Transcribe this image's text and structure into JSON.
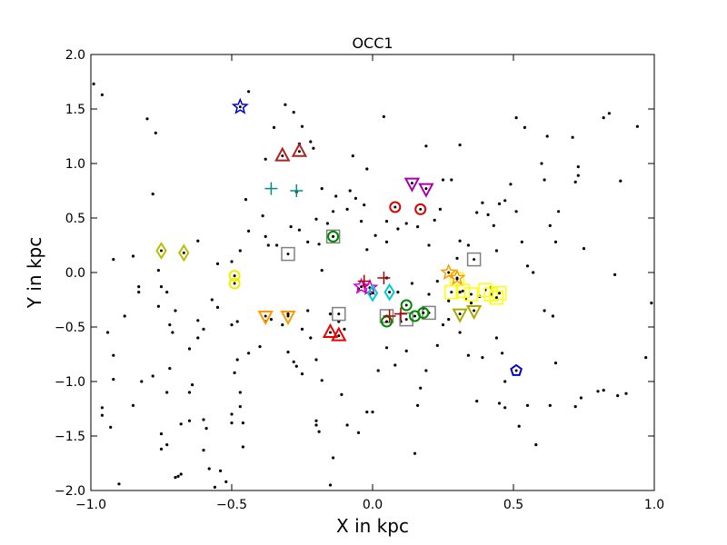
{
  "chart_data": {
    "type": "scatter",
    "title": "OCC1",
    "xlabel": "X in kpc",
    "ylabel": "Y in kpc",
    "xlim": [
      -1.0,
      1.0
    ],
    "ylim": [
      -2.0,
      2.0
    ],
    "x_ticks": [
      {
        "value": -1.0,
        "label": "−1.0"
      },
      {
        "value": -0.5,
        "label": "−0.5"
      },
      {
        "value": 0.0,
        "label": "0.0"
      },
      {
        "value": 0.5,
        "label": "0.5"
      },
      {
        "value": 1.0,
        "label": "1.0"
      }
    ],
    "y_ticks": [
      {
        "value": -2.0,
        "label": "−2.0"
      },
      {
        "value": -1.5,
        "label": "−1.5"
      },
      {
        "value": -1.0,
        "label": "−1.0"
      },
      {
        "value": -0.5,
        "label": "−0.5"
      },
      {
        "value": 0.0,
        "label": "0.0"
      },
      {
        "value": 0.5,
        "label": "0.5"
      },
      {
        "value": 1.0,
        "label": "1.0"
      },
      {
        "value": 1.5,
        "label": "1.5"
      },
      {
        "value": 2.0,
        "label": "2.0"
      }
    ],
    "grid": false,
    "legend": "none",
    "series": [
      {
        "marker": "dot",
        "color": "#000000",
        "points": [
          [
            -0.99,
            1.73
          ],
          [
            -0.96,
            1.63
          ],
          [
            -0.94,
            -0.55
          ],
          [
            -0.92,
            0.12
          ],
          [
            -0.96,
            -1.24
          ],
          [
            -0.96,
            -1.31
          ],
          [
            -0.93,
            -1.42
          ],
          [
            -0.92,
            -0.76
          ],
          [
            -0.9,
            -1.94
          ],
          [
            -0.85,
            -1.22
          ],
          [
            -0.83,
            -0.13
          ],
          [
            -0.83,
            -0.18
          ],
          [
            -0.8,
            1.41
          ],
          [
            -0.78,
            0.72
          ],
          [
            -0.77,
            1.28
          ],
          [
            -0.76,
            0.02
          ],
          [
            -0.76,
            -0.31
          ],
          [
            -0.75,
            -0.13
          ],
          [
            -0.73,
            -0.18
          ],
          [
            -0.72,
            -0.48
          ],
          [
            -0.71,
            -0.55
          ],
          [
            -0.72,
            -0.88
          ],
          [
            -0.73,
            -1.1
          ],
          [
            -0.75,
            -1.48
          ],
          [
            -0.75,
            -1.62
          ],
          [
            -0.73,
            -1.58
          ],
          [
            -0.7,
            -1.88
          ],
          [
            -0.69,
            -1.87
          ],
          [
            -0.68,
            -1.39
          ],
          [
            -0.68,
            -1.85
          ],
          [
            -0.65,
            -1.36
          ],
          [
            -0.65,
            -1.1
          ],
          [
            -0.64,
            -1.03
          ],
          [
            -0.62,
            -0.44
          ],
          [
            -0.62,
            -0.6
          ],
          [
            -0.6,
            -1.35
          ],
          [
            -0.59,
            -1.43
          ],
          [
            -0.6,
            -1.63
          ],
          [
            -0.58,
            -1.8
          ],
          [
            -0.54,
            -1.82
          ],
          [
            -0.52,
            -1.92
          ],
          [
            -0.56,
            -1.97
          ],
          [
            -0.48,
            -0.45
          ],
          [
            -0.5,
            -0.48
          ],
          [
            -0.48,
            -0.8
          ],
          [
            -0.49,
            -0.92
          ],
          [
            -0.5,
            -1.3
          ],
          [
            -0.5,
            -1.38
          ],
          [
            -0.47,
            -1.23
          ],
          [
            -0.46,
            -1.38
          ],
          [
            -0.46,
            -1.6
          ],
          [
            -0.47,
            -1.1
          ],
          [
            -0.44,
            -0.74
          ],
          [
            -0.4,
            -0.68
          ],
          [
            -0.38,
            -0.45
          ],
          [
            -0.36,
            -0.43
          ],
          [
            -0.32,
            -0.48
          ],
          [
            -0.3,
            -0.73
          ],
          [
            -0.28,
            -0.82
          ],
          [
            -0.27,
            -0.86
          ],
          [
            -0.25,
            -0.93
          ],
          [
            -0.22,
            -0.6
          ],
          [
            -0.2,
            -0.8
          ],
          [
            -0.18,
            -0.99
          ],
          [
            -0.2,
            -1.36
          ],
          [
            -0.2,
            -1.4
          ],
          [
            -0.19,
            -1.46
          ],
          [
            -0.15,
            -1.95
          ],
          [
            -0.14,
            -1.7
          ],
          [
            -0.11,
            -1.12
          ],
          [
            -0.09,
            -1.4
          ],
          [
            -0.05,
            -1.47
          ],
          [
            -0.02,
            -1.28
          ],
          [
            -0.5,
            0.1
          ],
          [
            -0.47,
            0.2
          ],
          [
            -0.45,
            0.67
          ],
          [
            -0.44,
            0.38
          ],
          [
            -0.39,
            0.52
          ],
          [
            -0.38,
            0.33
          ],
          [
            -0.37,
            0.25
          ],
          [
            -0.34,
            0.25
          ],
          [
            -0.29,
            0.42
          ],
          [
            -0.26,
            0.39
          ],
          [
            -0.23,
            0.28
          ],
          [
            -0.2,
            0.49
          ],
          [
            -0.19,
            0.26
          ],
          [
            -0.18,
            0.02
          ],
          [
            -0.16,
            0.45
          ],
          [
            -0.14,
            0.56
          ],
          [
            -0.13,
            0.7
          ],
          [
            -0.09,
            0.58
          ],
          [
            -0.08,
            0.75
          ],
          [
            -0.06,
            0.68
          ],
          [
            -0.04,
            0.47
          ],
          [
            -0.03,
            0.62
          ],
          [
            -0.02,
            0.21
          ],
          [
            0.01,
            0.34
          ],
          [
            0.05,
            0.47
          ],
          [
            0.05,
            0.28
          ],
          [
            0.09,
            0.4
          ],
          [
            0.12,
            0.45
          ],
          [
            0.16,
            0.42
          ],
          [
            0.2,
            0.25
          ],
          [
            0.22,
            0.48
          ],
          [
            0.24,
            0.58
          ],
          [
            0.25,
            0.85
          ],
          [
            0.28,
            0.85
          ],
          [
            0.31,
            0.29
          ],
          [
            0.3,
            0.13
          ],
          [
            0.34,
            0.25
          ],
          [
            0.37,
            0.55
          ],
          [
            0.39,
            0.64
          ],
          [
            0.41,
            0.53
          ],
          [
            0.43,
            0.43
          ],
          [
            0.44,
            0.2
          ],
          [
            0.45,
            0.63
          ],
          [
            0.47,
            0.66
          ],
          [
            0.49,
            0.81
          ],
          [
            0.51,
            0.56
          ],
          [
            0.53,
            0.28
          ],
          [
            0.55,
            0.06
          ],
          [
            0.57,
            0.0
          ],
          [
            0.61,
            0.85
          ],
          [
            0.63,
            0.43
          ],
          [
            0.65,
            0.28
          ],
          [
            0.66,
            0.56
          ],
          [
            0.71,
            1.24
          ],
          [
            0.72,
            0.83
          ],
          [
            0.73,
            0.97
          ],
          [
            0.75,
            0.22
          ],
          [
            0.82,
            1.42
          ],
          [
            0.84,
            1.46
          ],
          [
            0.86,
            -0.02
          ],
          [
            0.88,
            0.84
          ],
          [
            0.94,
            1.34
          ],
          [
            0.99,
            -0.28
          ],
          [
            0.97,
            -0.78
          ],
          [
            0.9,
            -1.11
          ],
          [
            0.87,
            -1.13
          ],
          [
            0.82,
            -1.08
          ],
          [
            0.8,
            -1.09
          ],
          [
            0.74,
            -1.15
          ],
          [
            0.72,
            -1.23
          ],
          [
            0.65,
            -0.83
          ],
          [
            0.64,
            -0.4
          ],
          [
            0.61,
            -0.35
          ],
          [
            0.58,
            -1.58
          ],
          [
            0.63,
            -1.22
          ],
          [
            0.55,
            -1.22
          ],
          [
            0.52,
            -1.41
          ],
          [
            0.47,
            -1.0
          ],
          [
            0.45,
            -1.2
          ],
          [
            0.47,
            -1.24
          ],
          [
            0.46,
            -0.74
          ],
          [
            0.44,
            -0.6
          ],
          [
            0.39,
            -0.78
          ],
          [
            0.37,
            -1.18
          ],
          [
            0.34,
            -0.76
          ],
          [
            0.31,
            -0.55
          ],
          [
            0.27,
            -0.43
          ],
          [
            0.23,
            -0.67
          ],
          [
            0.19,
            -0.9
          ],
          [
            0.17,
            -1.06
          ],
          [
            0.16,
            -1.22
          ],
          [
            0.15,
            -1.66
          ],
          [
            0.12,
            -0.72
          ],
          [
            0.08,
            -0.85
          ],
          [
            0.05,
            -0.69
          ],
          [
            0.02,
            -0.9
          ],
          [
            0.0,
            -1.28
          ],
          [
            -0.28,
            1.47
          ],
          [
            -0.25,
            1.34
          ],
          [
            -0.22,
            1.2
          ],
          [
            -0.21,
            1.14
          ],
          [
            -0.27,
            0.74
          ],
          [
            -0.35,
            1.33
          ],
          [
            -0.38,
            1.04
          ],
          [
            -0.44,
            1.66
          ],
          [
            -0.31,
            1.54
          ],
          [
            -0.26,
            1.18
          ],
          [
            -0.18,
            0.77
          ],
          [
            -0.07,
            1.07
          ],
          [
            -0.02,
            0.95
          ],
          [
            0.04,
            1.43
          ],
          [
            0.19,
            1.16
          ],
          [
            0.31,
            1.17
          ],
          [
            0.51,
            1.42
          ],
          [
            0.54,
            1.33
          ],
          [
            0.62,
            1.25
          ],
          [
            0.6,
            1.0
          ],
          [
            0.73,
            0.89
          ],
          [
            -0.05,
            -0.15
          ],
          [
            -0.01,
            -0.2
          ],
          [
            0.1,
            -0.45
          ],
          [
            0.14,
            -0.1
          ],
          [
            0.2,
            -0.2
          ],
          [
            0.23,
            -0.08
          ],
          [
            0.27,
            -0.26
          ],
          [
            0.31,
            -0.18
          ],
          [
            0.33,
            -0.24
          ],
          [
            0.35,
            -0.28
          ],
          [
            0.38,
            -0.22
          ],
          [
            0.42,
            -0.14
          ],
          [
            -0.15,
            -0.38
          ],
          [
            -0.12,
            -0.45
          ],
          [
            -0.1,
            -0.52
          ],
          [
            -0.23,
            -0.35
          ],
          [
            -0.3,
            -0.38
          ],
          [
            -0.25,
            -0.52
          ],
          [
            0.05,
            -0.05
          ],
          [
            0.09,
            -0.18
          ],
          [
            0.18,
            -0.33
          ],
          [
            0.25,
            -0.48
          ],
          [
            -0.55,
            -0.32
          ],
          [
            -0.6,
            -0.52
          ],
          [
            -0.65,
            -0.7
          ],
          [
            -0.7,
            -0.35
          ],
          [
            -0.78,
            -0.95
          ],
          [
            -0.82,
            -1.0
          ],
          [
            -0.88,
            -0.4
          ],
          [
            -0.92,
            -0.98
          ],
          [
            -0.85,
            0.15
          ],
          [
            -0.62,
            0.29
          ],
          [
            -0.55,
            0.08
          ],
          [
            -0.57,
            -0.25
          ]
        ]
      },
      {
        "marker": "star",
        "color": "#0000cc",
        "points": [
          [
            -0.47,
            1.52
          ]
        ]
      },
      {
        "marker": "triangle-up",
        "color": "#aa2222",
        "points": [
          [
            -0.32,
            1.07
          ],
          [
            -0.26,
            1.11
          ]
        ]
      },
      {
        "marker": "plus",
        "color": "#008b8b",
        "points": [
          [
            -0.36,
            0.77
          ],
          [
            -0.27,
            0.75
          ]
        ]
      },
      {
        "marker": "triangle-down",
        "color": "#aa00aa",
        "points": [
          [
            0.14,
            0.82
          ],
          [
            0.19,
            0.77
          ]
        ]
      },
      {
        "marker": "circle",
        "color": "#dd0000",
        "points": [
          [
            0.08,
            0.6
          ],
          [
            0.17,
            0.58
          ]
        ]
      },
      {
        "marker": "square",
        "color": "#808080",
        "points": [
          [
            -0.3,
            0.17
          ],
          [
            0.36,
            0.12
          ],
          [
            -0.12,
            -0.38
          ],
          [
            0.05,
            -0.4
          ],
          [
            0.12,
            -0.43
          ],
          [
            0.2,
            -0.37
          ],
          [
            -0.14,
            0.33
          ]
        ]
      },
      {
        "marker": "circle",
        "color": "#008800",
        "points": [
          [
            -0.14,
            0.33
          ],
          [
            0.12,
            -0.3
          ],
          [
            0.05,
            -0.45
          ],
          [
            0.15,
            -0.4
          ],
          [
            0.18,
            -0.37
          ]
        ]
      },
      {
        "marker": "diamond",
        "color": "#bbbb00",
        "points": [
          [
            -0.75,
            0.2
          ],
          [
            -0.67,
            0.18
          ]
        ]
      },
      {
        "marker": "circle",
        "color": "#eeee00",
        "points": [
          [
            -0.49,
            -0.03
          ],
          [
            -0.49,
            -0.1
          ]
        ]
      },
      {
        "marker": "triangle-down",
        "color": "#ff9900",
        "points": [
          [
            -0.38,
            -0.4
          ],
          [
            -0.3,
            -0.4
          ]
        ]
      },
      {
        "marker": "triangle-up",
        "color": "#ee0000",
        "points": [
          [
            -0.15,
            -0.55
          ],
          [
            -0.12,
            -0.58
          ]
        ]
      },
      {
        "marker": "star",
        "color": "#cc00cc",
        "points": [
          [
            -0.04,
            -0.13
          ],
          [
            -0.01,
            -0.14
          ]
        ]
      },
      {
        "marker": "diamond",
        "color": "#00cccc",
        "points": [
          [
            0.0,
            -0.19
          ],
          [
            0.06,
            -0.18
          ]
        ]
      },
      {
        "marker": "plus",
        "color": "#aa0000",
        "points": [
          [
            -0.03,
            -0.08
          ],
          [
            0.04,
            -0.05
          ],
          [
            0.06,
            -0.4
          ],
          [
            0.1,
            -0.38
          ]
        ]
      },
      {
        "marker": "square",
        "color": "#ffff00",
        "points": [
          [
            0.28,
            -0.18
          ],
          [
            0.32,
            -0.17
          ],
          [
            0.35,
            -0.2
          ],
          [
            0.4,
            -0.16
          ],
          [
            0.42,
            -0.2
          ],
          [
            0.45,
            -0.19
          ],
          [
            0.44,
            -0.23
          ],
          [
            0.3,
            -0.06
          ]
        ]
      },
      {
        "marker": "star",
        "color": "#ff9900",
        "points": [
          [
            0.27,
            0.0
          ],
          [
            0.3,
            -0.05
          ]
        ]
      },
      {
        "marker": "triangle-down",
        "color": "#aaaa00",
        "points": [
          [
            0.31,
            -0.38
          ],
          [
            0.36,
            -0.35
          ]
        ]
      },
      {
        "marker": "pentagon",
        "color": "#0000cc",
        "points": [
          [
            0.51,
            -0.9
          ]
        ]
      }
    ]
  }
}
